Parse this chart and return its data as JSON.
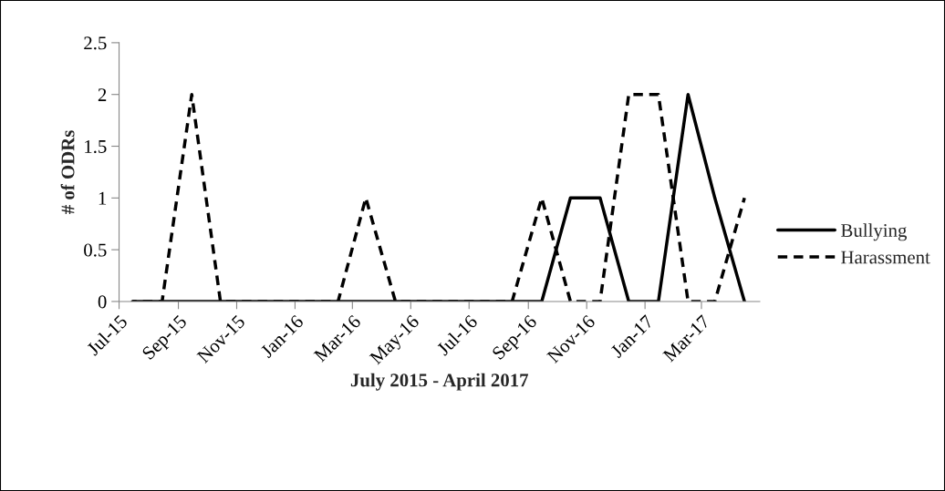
{
  "chart_data": {
    "type": "line",
    "xlabel": "July 2015 - April 2017",
    "ylabel": "# of ODRs",
    "x": [
      "2015-07-15",
      "2015-08-15",
      "2015-09-15",
      "2015-10-15",
      "2015-11-15",
      "2015-12-15",
      "2016-01-15",
      "2016-02-15",
      "2016-03-15",
      "2016-04-15",
      "2016-05-15",
      "2016-06-15",
      "2016-07-15",
      "2016-08-15",
      "2016-09-15",
      "2016-10-15",
      "2016-11-15",
      "2016-12-15",
      "2017-01-15",
      "2017-02-15",
      "2017-03-15",
      "2017-04-15"
    ],
    "series": [
      {
        "name": "Bullying",
        "color": "#000000",
        "line_style": "solid",
        "values": [
          0,
          0,
          0,
          0,
          0,
          0,
          0,
          0,
          0,
          0,
          0,
          0,
          0,
          0,
          0,
          1,
          1,
          0,
          0,
          2,
          1,
          0
        ]
      },
      {
        "name": "Harassment",
        "color": "#000000",
        "line_style": "dashed",
        "values": [
          0,
          0,
          2,
          0,
          0,
          0,
          0,
          0,
          1,
          0,
          0,
          0,
          0,
          0,
          1,
          0,
          0,
          2,
          2,
          0,
          0,
          1
        ]
      }
    ],
    "xlim": [
      "2015-07-01",
      "2017-05-01"
    ],
    "xticks": [
      {
        "value": "2015-07-01",
        "label": "Jul-15"
      },
      {
        "value": "2015-09-01",
        "label": "Sep-15"
      },
      {
        "value": "2015-11-01",
        "label": "Nov-15"
      },
      {
        "value": "2016-01-01",
        "label": "Jan-16"
      },
      {
        "value": "2016-03-01",
        "label": "Mar-16"
      },
      {
        "value": "2016-05-01",
        "label": "May-16"
      },
      {
        "value": "2016-07-01",
        "label": "Jul-16"
      },
      {
        "value": "2016-09-01",
        "label": "Sep-16"
      },
      {
        "value": "2016-11-01",
        "label": "Nov-16"
      },
      {
        "value": "2017-01-01",
        "label": "Jan-17"
      },
      {
        "value": "2017-03-01",
        "label": "Mar-17"
      }
    ],
    "ylim": [
      0,
      2.5
    ],
    "yticks": [
      0,
      0.5,
      1,
      1.5,
      2,
      2.5
    ],
    "grid": false,
    "legend": "right",
    "marker": "none"
  }
}
